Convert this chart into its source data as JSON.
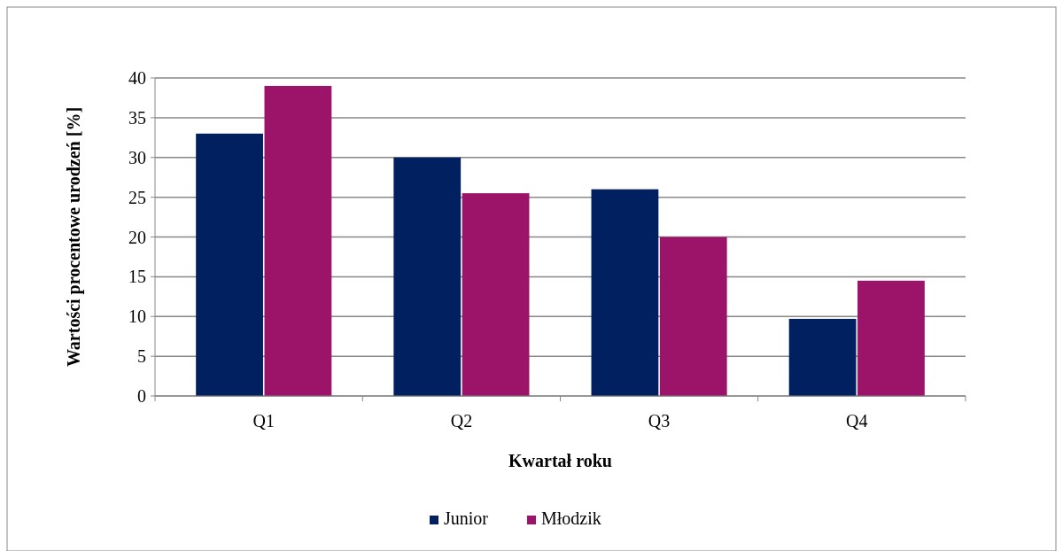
{
  "chart_data": {
    "type": "bar",
    "xlabel": "Kwartał roku",
    "ylabel": "Wartości procentowe urodzeń [%]",
    "categories": [
      "Q1",
      "Q2",
      "Q3",
      "Q4"
    ],
    "series": [
      {
        "name": "Junior",
        "color": "#002060",
        "values": [
          33,
          30,
          26,
          9.7
        ]
      },
      {
        "name": "Młodzik",
        "color": "#9b1469",
        "values": [
          39,
          25.5,
          20,
          14.5
        ]
      }
    ],
    "ylim": [
      0,
      40
    ],
    "yticks": [
      0,
      5,
      10,
      15,
      20,
      25,
      30,
      35,
      40
    ],
    "grid": "y",
    "legend": "bottom"
  }
}
